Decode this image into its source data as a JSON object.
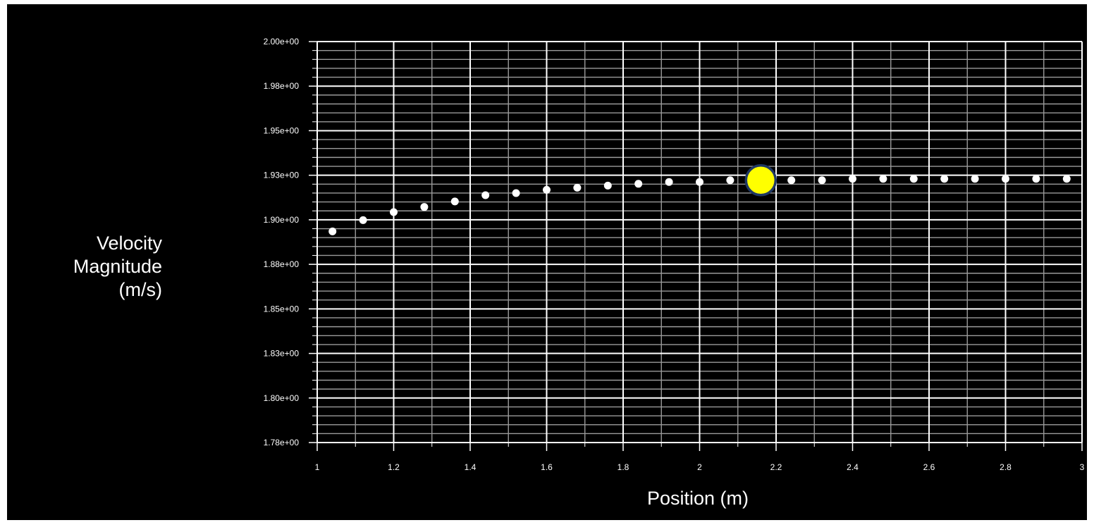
{
  "chart_data": {
    "type": "scatter",
    "xlabel": "Position (m)",
    "ylabel_lines": [
      "Velocity",
      "Magnitude",
      "(m/s)"
    ],
    "xlim": [
      1,
      3
    ],
    "ylim": [
      1.775,
      2.0
    ],
    "grid": true,
    "x_ticks": [
      1,
      1.2,
      1.4,
      1.6,
      1.8,
      2,
      2.2,
      2.4,
      2.6,
      2.8,
      3
    ],
    "x_tick_labels": [
      "1",
      "1.2",
      "1.4",
      "1.6",
      "1.8",
      "2",
      "2.2",
      "2.4",
      "2.6",
      "2.8",
      "3"
    ],
    "y_ticks": [
      1.775,
      1.8,
      1.825,
      1.85,
      1.875,
      1.9,
      1.925,
      1.95,
      1.975,
      2.0
    ],
    "y_tick_labels": [
      "1.78e+00",
      "1.80e+00",
      "1.83e+00",
      "1.85e+00",
      "1.88e+00",
      "1.90e+00",
      "1.93e+00",
      "1.95e+00",
      "1.98e+00",
      "2.00e+00"
    ],
    "series": [
      {
        "x": [
          1.04,
          1.12,
          1.2,
          1.28,
          1.36,
          1.44,
          1.52,
          1.6,
          1.68,
          1.76,
          1.84,
          1.92,
          2.0,
          2.08,
          2.24,
          2.32,
          2.4,
          2.48,
          2.56,
          2.64,
          2.72,
          2.8,
          2.88,
          2.96
        ],
        "y": [
          1.8935,
          1.8998,
          1.9043,
          1.9072,
          1.9103,
          1.9138,
          1.915,
          1.9168,
          1.918,
          1.9192,
          1.9202,
          1.9212,
          1.9212,
          1.9222,
          1.9222,
          1.9222,
          1.923,
          1.923,
          1.923,
          1.923,
          1.923,
          1.923,
          1.923,
          1.923
        ],
        "color": "#ffffff"
      }
    ],
    "highlight": {
      "x": 2.16,
      "y": 1.9222,
      "color": "#ffff00",
      "outline": "#1f3864"
    }
  }
}
